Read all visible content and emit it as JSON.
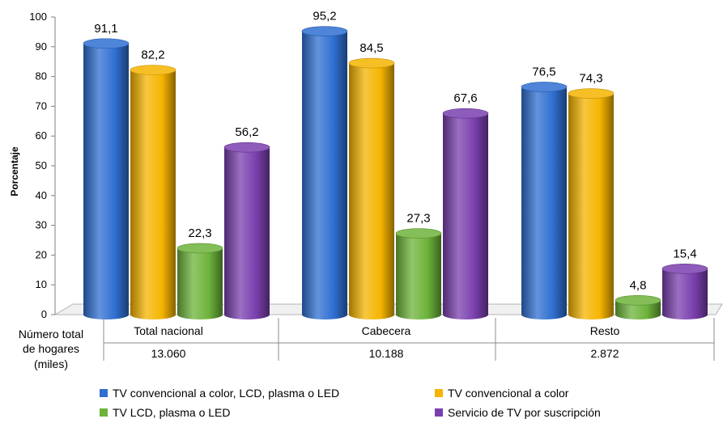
{
  "chart_data": {
    "type": "bar",
    "title": "",
    "ylabel": "Porcentaje",
    "xlabel": "",
    "ylim": [
      0,
      100
    ],
    "yticks": [
      0,
      10,
      20,
      30,
      40,
      50,
      60,
      70,
      80,
      90,
      100
    ],
    "grid": false,
    "legend_position": "bottom",
    "categories": [
      "Total nacional",
      "Cabecera",
      "Resto"
    ],
    "series": [
      {
        "name": "TV convencional a color, LCD, plasma o LED",
        "color": "#2f6fd1",
        "values": [
          91.1,
          95.2,
          76.5
        ],
        "labels": [
          "91,1",
          "95,2",
          "76,5"
        ]
      },
      {
        "name": "TV convencional a color",
        "color": "#f5b400",
        "values": [
          82.2,
          84.5,
          74.3
        ],
        "labels": [
          "82,2",
          "84,5",
          "74,3"
        ]
      },
      {
        "name": "TV LCD, plasma o LED",
        "color": "#6db33a",
        "values": [
          22.3,
          27.3,
          4.8
        ],
        "labels": [
          "22,3",
          "27,3",
          "4,8"
        ]
      },
      {
        "name": "Servicio de TV por suscripción",
        "color": "#7a3fae",
        "values": [
          56.2,
          67.6,
          15.4
        ],
        "labels": [
          "56,2",
          "67,6",
          "15,4"
        ]
      }
    ],
    "table": {
      "row_header_lines": [
        "Número total",
        "de hogares",
        "(miles)"
      ],
      "values": [
        "13.060",
        "10.188",
        "2.872"
      ]
    }
  }
}
